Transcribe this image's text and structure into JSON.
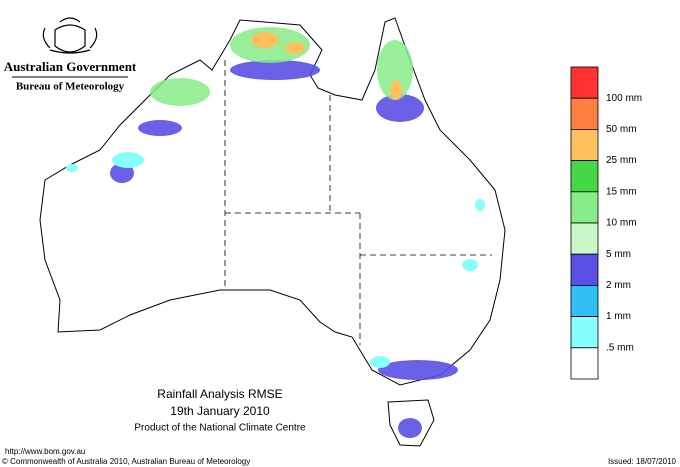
{
  "header": {
    "title": "Australian Government",
    "subtitle": "Bureau of Meteorology"
  },
  "legend": {
    "colors": [
      "#ff3333",
      "#ff8040",
      "#ffc060",
      "#44d844",
      "#88ec88",
      "#c8f8c8",
      "#5a50e6",
      "#30c0f4",
      "#88ffff",
      "#ffffff"
    ],
    "labels": [
      "100 mm",
      "50 mm",
      "25 mm",
      "15 mm",
      "10 mm",
      "5 mm",
      "2 mm",
      "1 mm",
      ".5 mm"
    ]
  },
  "caption": {
    "title": "Rainfall Analysis RMSE",
    "date": "19th  January  2010",
    "product": "Product of the National Climate Centre"
  },
  "footer": {
    "url": "http://www.bom.gov.au",
    "copyright": "© Commonwealth of Australia 2010, Australian Bureau of Meteorology",
    "issued": "Issued: 18/07/2010"
  }
}
